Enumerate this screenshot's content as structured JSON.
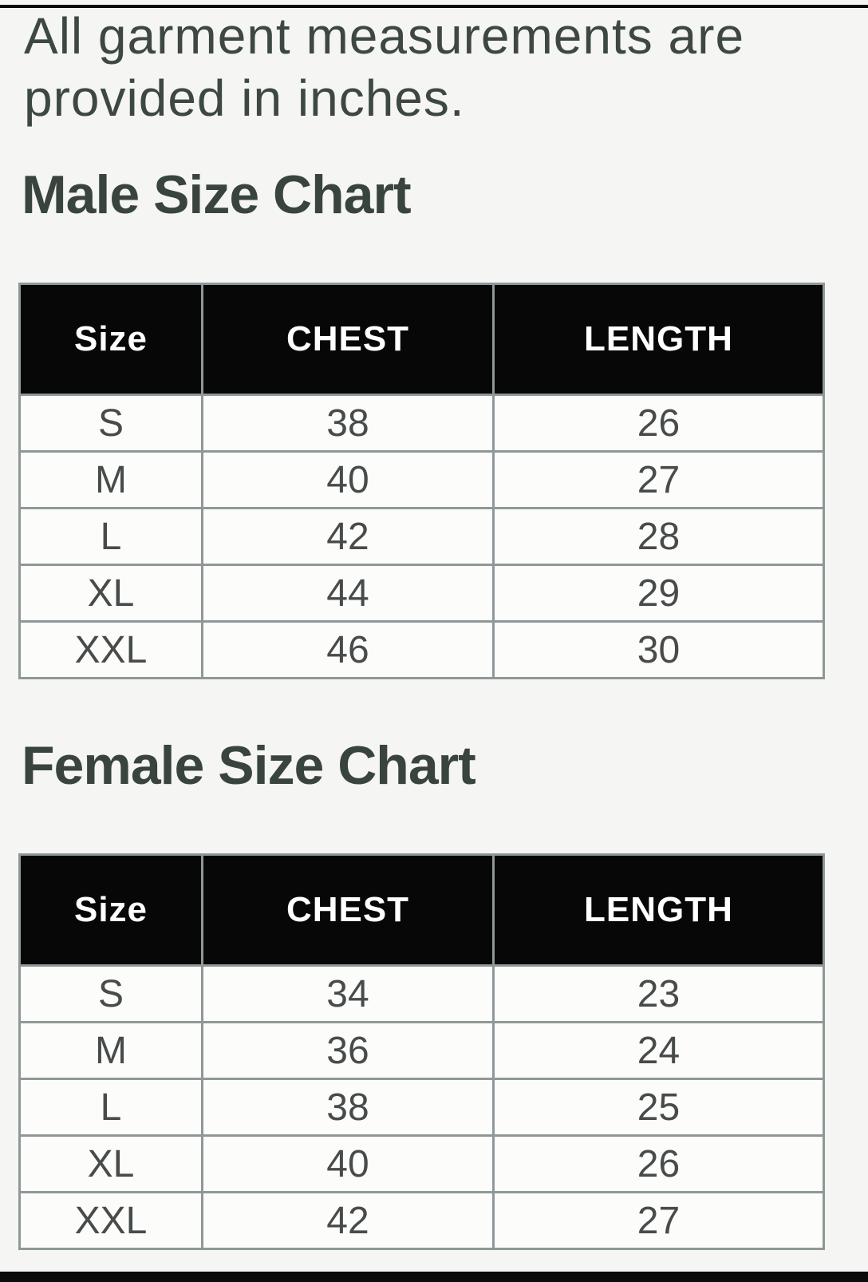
{
  "intro": {
    "text": "All garment measurements are provided in inches."
  },
  "male_chart": {
    "title": "Male Size Chart",
    "columns": [
      "Size",
      "CHEST",
      "LENGTH"
    ],
    "rows": [
      [
        "S",
        "38",
        "26"
      ],
      [
        "M",
        "40",
        "27"
      ],
      [
        "L",
        "42",
        "28"
      ],
      [
        "XL",
        "44",
        "29"
      ],
      [
        "XXL",
        "46",
        "30"
      ]
    ]
  },
  "female_chart": {
    "title": "Female Size Chart",
    "columns": [
      "Size",
      "CHEST",
      "LENGTH"
    ],
    "rows": [
      [
        "S",
        "34",
        "23"
      ],
      [
        "M",
        "36",
        "24"
      ],
      [
        "L",
        "38",
        "25"
      ],
      [
        "XL",
        "40",
        "26"
      ],
      [
        "XXL",
        "42",
        "27"
      ]
    ]
  },
  "colors": {
    "page_background": "#f5f5f3",
    "heading_text": "#39443e",
    "intro_text": "#3d4842",
    "table_border": "#8e9897",
    "header_background": "#070707",
    "header_text": "#ffffff",
    "cell_background": "#fcfcfb",
    "cell_text": "#474c4b",
    "edge_bars": "#0b0b0b"
  }
}
